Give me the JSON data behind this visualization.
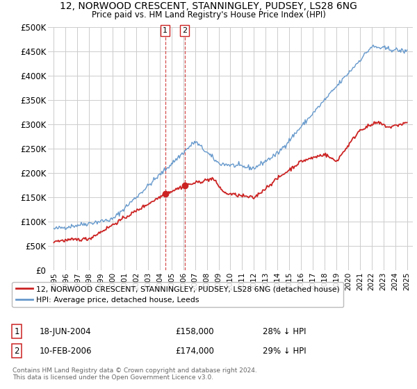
{
  "title_line1": "12, NORWOOD CRESCENT, STANNINGLEY, PUDSEY, LS28 6NG",
  "title_line2": "Price paid vs. HM Land Registry's House Price Index (HPI)",
  "ylabel_ticks": [
    "£0",
    "£50K",
    "£100K",
    "£150K",
    "£200K",
    "£250K",
    "£300K",
    "£350K",
    "£400K",
    "£450K",
    "£500K"
  ],
  "ytick_vals": [
    0,
    50000,
    100000,
    150000,
    200000,
    250000,
    300000,
    350000,
    400000,
    450000,
    500000
  ],
  "xlim": [
    1994.5,
    2025.5
  ],
  "ylim": [
    0,
    500000
  ],
  "hpi_color": "#6699cc",
  "price_color": "#cc2222",
  "marker1_x": 2004.46,
  "marker1_y": 158000,
  "marker2_x": 2006.12,
  "marker2_y": 174000,
  "legend_label1": "12, NORWOOD CRESCENT, STANNINGLEY, PUDSEY, LS28 6NG (detached house)",
  "legend_label2": "HPI: Average price, detached house, Leeds",
  "table_row1": [
    "1",
    "18-JUN-2004",
    "£158,000",
    "28% ↓ HPI"
  ],
  "table_row2": [
    "2",
    "10-FEB-2006",
    "£174,000",
    "29% ↓ HPI"
  ],
  "footnote1": "Contains HM Land Registry data © Crown copyright and database right 2024.",
  "footnote2": "This data is licensed under the Open Government Licence v3.0.",
  "background_color": "#ffffff",
  "grid_color": "#cccccc"
}
